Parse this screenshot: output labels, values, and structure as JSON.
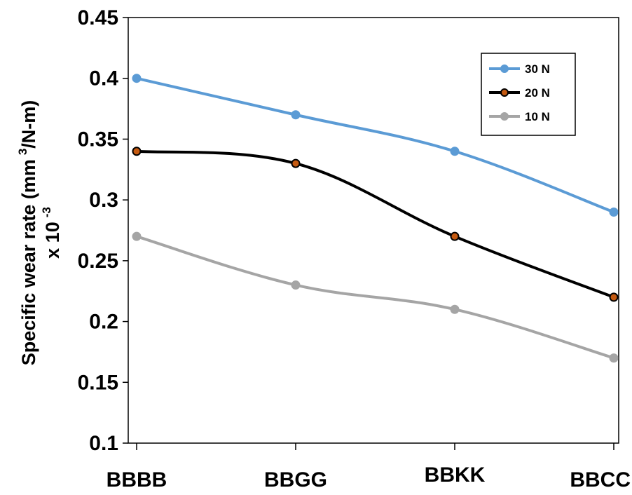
{
  "chart_data": {
    "type": "line",
    "categories": [
      "BBBB",
      "BBGG",
      "BBKK",
      "BBCC"
    ],
    "series": [
      {
        "name": "30 N",
        "values": [
          0.4,
          0.37,
          0.34,
          0.29
        ],
        "color": "#5b9bd5",
        "marker_fill": "#5b9bd5"
      },
      {
        "name": "20 N",
        "values": [
          0.34,
          0.33,
          0.27,
          0.22
        ],
        "color": "#000000",
        "marker_fill": "#c55a11"
      },
      {
        "name": "10 N",
        "values": [
          0.27,
          0.23,
          0.21,
          0.17
        ],
        "color": "#a5a5a5",
        "marker_fill": "#a5a5a5"
      }
    ],
    "title": "",
    "xlabel": "",
    "ylabel_line1": "Specific wear rate (mm",
    "ylabel_sup": "3",
    "ylabel_line1_end": "/N-m)",
    "ylabel_line2": "x 10",
    "ylabel_line2_sup": "-3",
    "ylim": [
      0.1,
      0.45
    ],
    "yticks": [
      "0.1",
      "0.15",
      "0.2",
      "0.25",
      "0.3",
      "0.35",
      "0.4",
      "0.45"
    ],
    "smooth": true,
    "grid": false,
    "legend_position": "top-right"
  }
}
